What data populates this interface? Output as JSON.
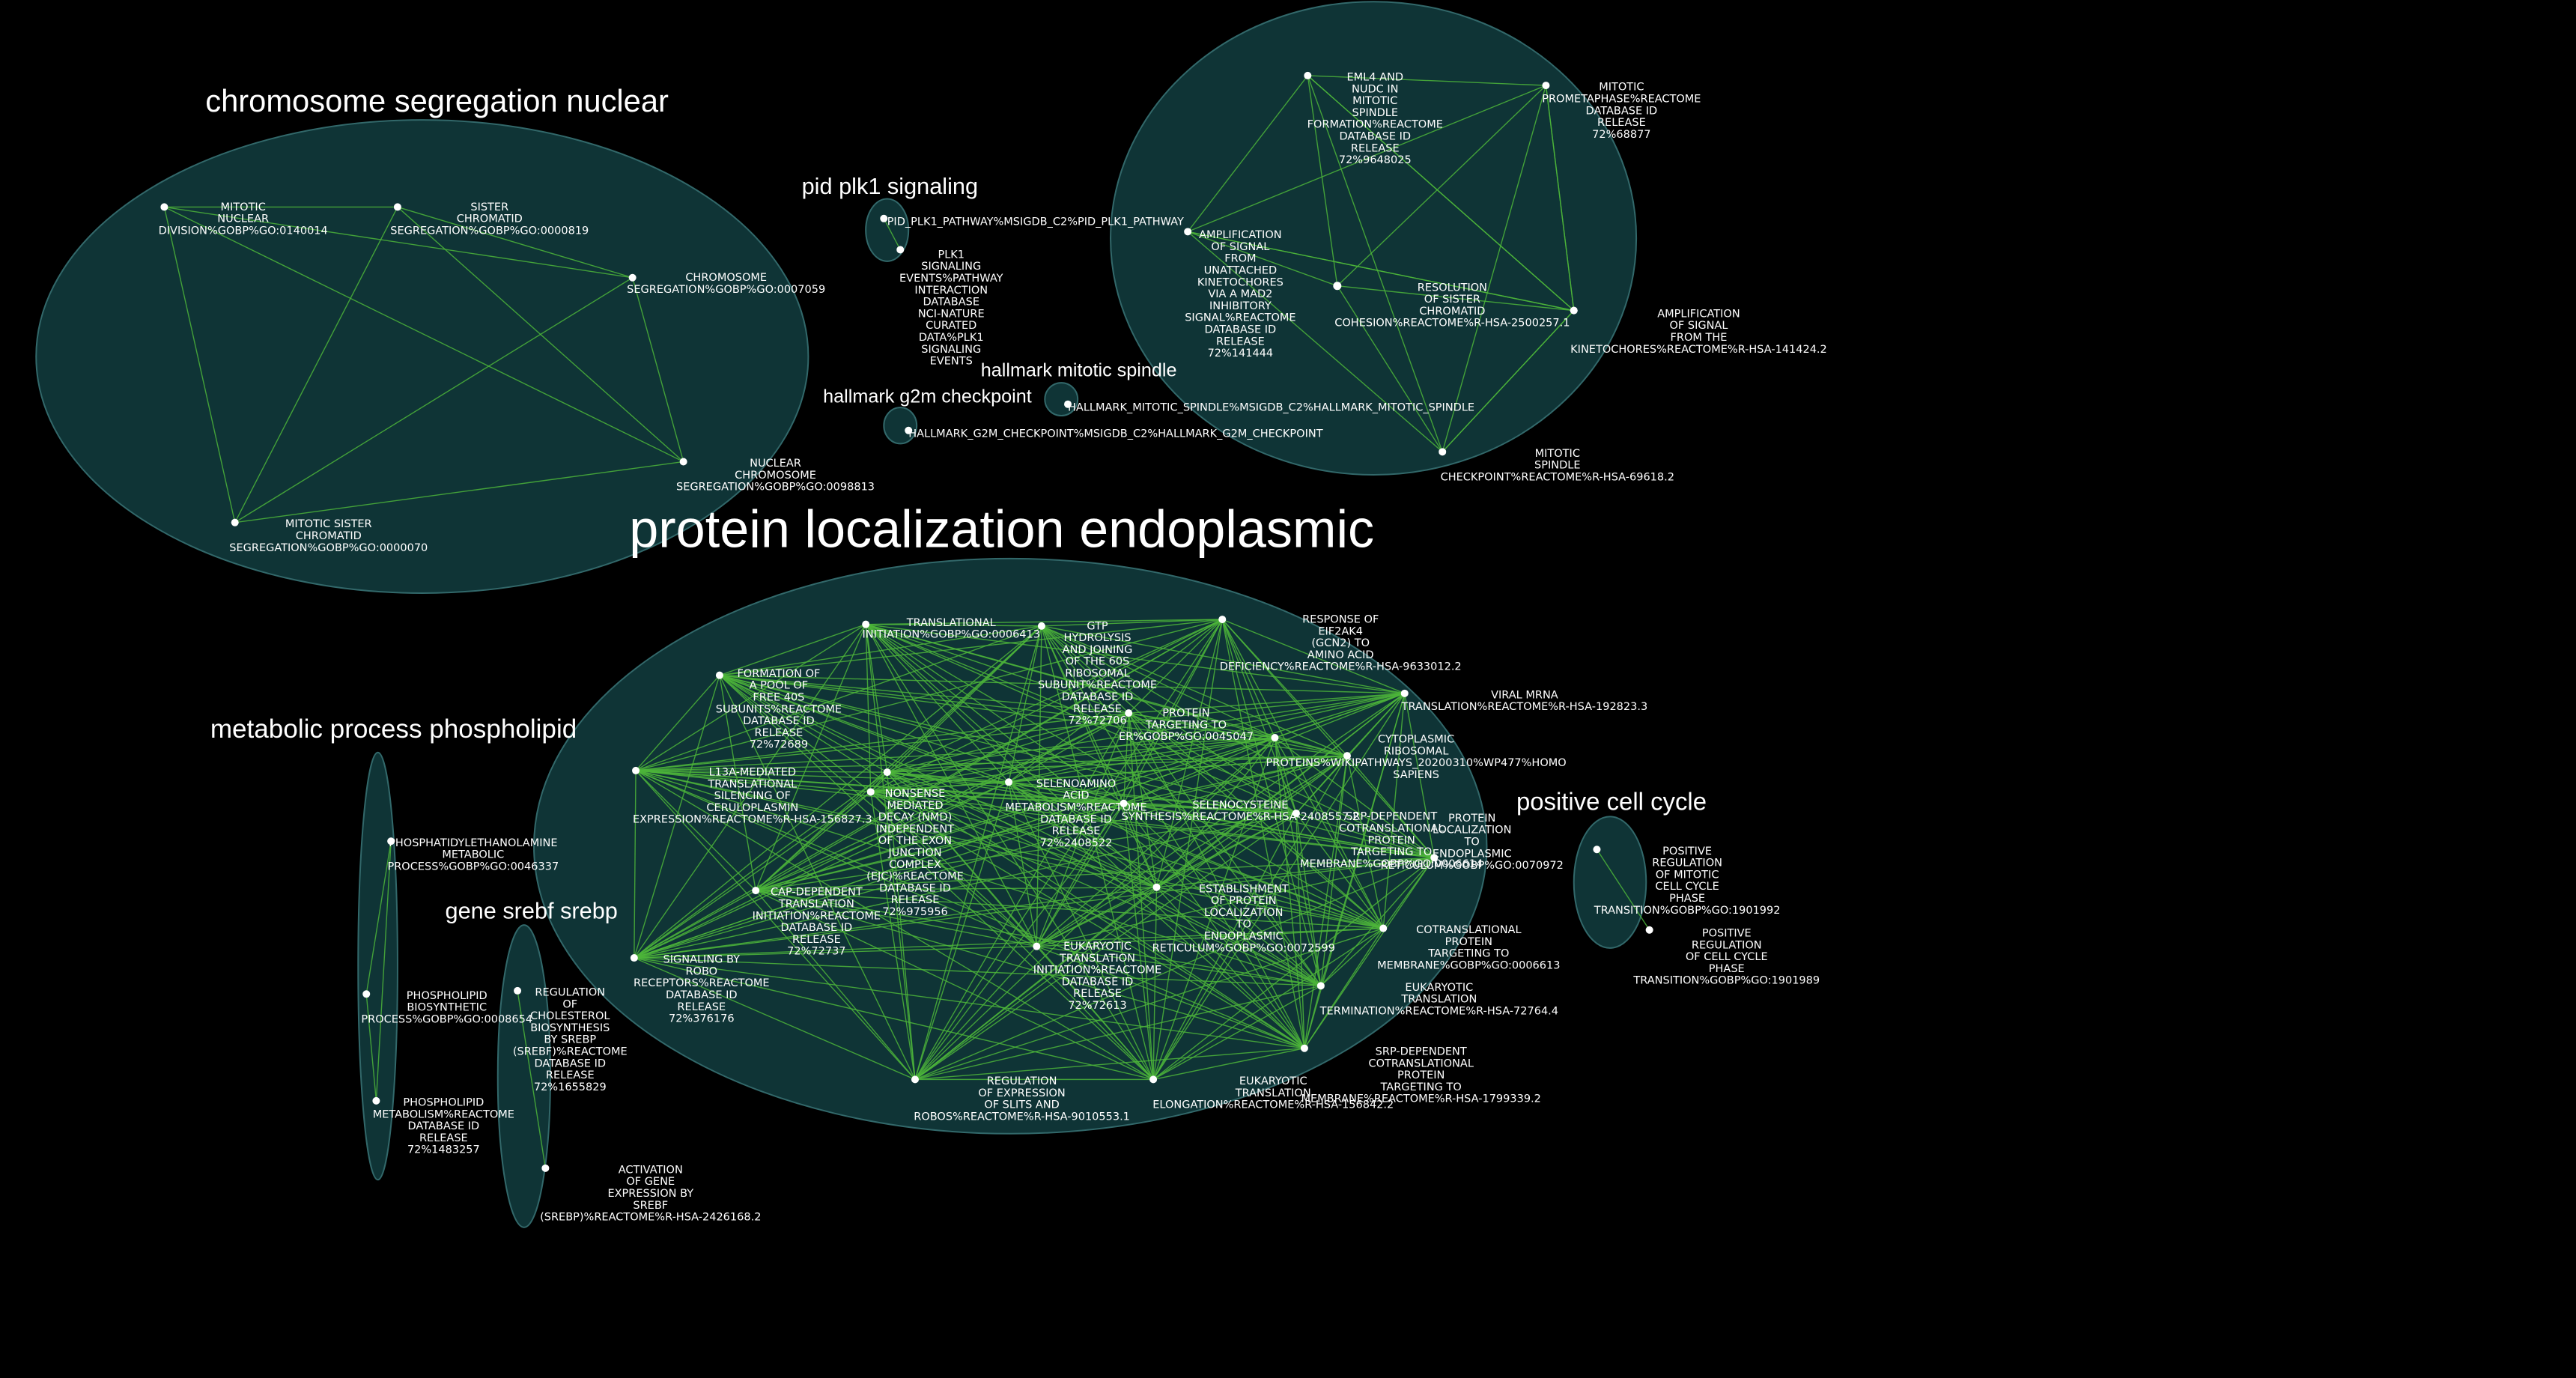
{
  "colors": {
    "background": "#000000",
    "cluster_fill": "#0f3436",
    "cluster_stroke": "#32686a",
    "edge": "#4cb53a",
    "node": "#ffffff",
    "highlight_node": "#ffff33",
    "text": "#ffffff"
  },
  "clusters": [
    {
      "id": "c-chrom",
      "title": "chromosome segregation nuclear"
    },
    {
      "id": "c-plk1",
      "title": "pid plk1 signaling"
    },
    {
      "id": "c-g2m",
      "title": "hallmark g2m checkpoint"
    },
    {
      "id": "c-spindle",
      "title": "hallmark mitotic spindle"
    },
    {
      "id": "c-mitotic",
      "title": ""
    },
    {
      "id": "c-protein",
      "title": "protein localization endoplasmic"
    },
    {
      "id": "c-phospho",
      "title": "metabolic process phospholipid"
    },
    {
      "id": "c-srebf",
      "title": "gene srebf srebp"
    },
    {
      "id": "c-poscc",
      "title": "positive cell cycle"
    }
  ],
  "nodes": [
    {
      "id": "cs1",
      "cluster": "c-chrom",
      "label": [
        "MITOTIC",
        "NUCLEAR",
        "DIVISION%GOBP%GO:0140014"
      ]
    },
    {
      "id": "cs2",
      "cluster": "c-chrom",
      "label": [
        "SISTER",
        "CHROMATID",
        "SEGREGATION%GOBP%GO:0000819"
      ]
    },
    {
      "id": "cs3",
      "cluster": "c-chrom",
      "label": [
        "CHROMOSOME",
        "SEGREGATION%GOBP%GO:0007059"
      ]
    },
    {
      "id": "cs4",
      "cluster": "c-chrom",
      "label": [
        "NUCLEAR",
        "CHROMOSOME",
        "SEGREGATION%GOBP%GO:0098813"
      ]
    },
    {
      "id": "cs5",
      "cluster": "c-chrom",
      "label": [
        "MITOTIC SISTER",
        "CHROMATID",
        "SEGREGATION%GOBP%GO:0000070"
      ]
    },
    {
      "id": "pk1",
      "cluster": "c-plk1",
      "label": [
        "PID_PLK1_PATHWAY%MSIGDB_C2%PID_PLK1_PATHWAY"
      ]
    },
    {
      "id": "pk2",
      "cluster": "c-plk1",
      "label": [
        "PLK1",
        "SIGNALING",
        "EVENTS%PATHWAY",
        "INTERACTION",
        "DATABASE",
        "NCI-NATURE",
        "CURATED",
        "DATA%PLK1",
        "SIGNALING",
        "EVENTS"
      ]
    },
    {
      "id": "g2m",
      "cluster": "c-g2m",
      "label": [
        "HALLMARK_G2M_CHECKPOINT%MSIGDB_C2%HALLMARK_G2M_CHECKPOINT"
      ]
    },
    {
      "id": "msp",
      "cluster": "c-spindle",
      "label": [
        "HALLMARK_MITOTIC_SPINDLE%MSIGDB_C2%HALLMARK_MITOTIC_SPINDLE"
      ]
    },
    {
      "id": "mt1",
      "cluster": "c-mitotic",
      "label": [
        "EML4 AND",
        "NUDC IN",
        "MITOTIC",
        "SPINDLE",
        "FORMATION%REACTOME",
        "DATABASE ID",
        "RELEASE",
        "72%9648025"
      ]
    },
    {
      "id": "mt2",
      "cluster": "c-mitotic",
      "label": [
        "MITOTIC",
        "PROMETAPHASE%REACTOME",
        "DATABASE ID",
        "RELEASE",
        "72%68877"
      ]
    },
    {
      "id": "mt3",
      "cluster": "c-mitotic",
      "label": [
        "AMPLIFICATION",
        "OF SIGNAL",
        "FROM",
        "UNATTACHED",
        "KINETOCHORES",
        "VIA A MAD2",
        "INHIBITORY",
        "SIGNAL%REACTOME",
        "DATABASE ID",
        "RELEASE",
        "72%141444"
      ]
    },
    {
      "id": "mt4",
      "cluster": "c-mitotic",
      "label": [
        "RESOLUTION",
        "OF SISTER",
        "CHROMATID",
        "COHESION%REACTOME%R-HSA-2500257.1"
      ]
    },
    {
      "id": "mt5",
      "cluster": "c-mitotic",
      "label": [
        "AMPLIFICATION",
        "OF SIGNAL",
        "FROM THE",
        "KINETOCHORES%REACTOME%R-HSA-141424.2"
      ]
    },
    {
      "id": "mt6",
      "cluster": "c-mitotic",
      "label": [
        "MITOTIC",
        "SPINDLE",
        "CHECKPOINT%REACTOME%R-HSA-69618.2"
      ]
    },
    {
      "id": "mt7",
      "cluster": "c-mitotic",
      "label": []
    },
    {
      "id": "pr1",
      "cluster": "c-protein",
      "label": [
        "TRANSLATIONAL",
        "INITIATION%GOBP%GO:0006413"
      ]
    },
    {
      "id": "pr2",
      "cluster": "c-protein",
      "label": [
        "GTP",
        "HYDROLYSIS",
        "AND JOINING",
        "OF THE 60S",
        "RIBOSOMAL",
        "SUBUNIT%REACTOME",
        "DATABASE ID",
        "RELEASE",
        "72%72706"
      ]
    },
    {
      "id": "pr3",
      "cluster": "c-protein",
      "label": [
        "RESPONSE OF",
        "EIF2AK4",
        "(GCN2) TO",
        "AMINO ACID",
        "DEFICIENCY%REACTOME%R-HSA-9633012.2"
      ]
    },
    {
      "id": "pr4",
      "cluster": "c-protein",
      "label": [
        "FORMATION OF",
        "A POOL OF",
        "FREE 40S",
        "SUBUNITS%REACTOME",
        "DATABASE ID",
        "RELEASE",
        "72%72689"
      ]
    },
    {
      "id": "pr5",
      "cluster": "c-protein",
      "label": [
        "VIRAL MRNA",
        "TRANSLATION%REACTOME%R-HSA-192823.3"
      ]
    },
    {
      "id": "pr6",
      "cluster": "c-protein",
      "label": [
        "PROTEIN",
        "TARGETING TO",
        "ER%GOBP%GO:0045047"
      ]
    },
    {
      "id": "pr7",
      "cluster": "c-protein",
      "label": [
        "CYTOPLASMIC",
        "RIBOSOMAL",
        "PROTEINS%WIKIPATHWAYS_20200310%WP477%HOMO",
        "SAPIENS"
      ]
    },
    {
      "id": "pr8",
      "cluster": "c-protein",
      "label": [
        "L13A-MEDIATED",
        "TRANSLATIONAL",
        "SILENCING OF",
        "CERULOPLASMIN",
        "EXPRESSION%REACTOME%R-HSA-156827.3"
      ]
    },
    {
      "id": "pr9",
      "cluster": "c-protein",
      "label": [
        "NONSENSE",
        "MEDIATED",
        "DECAY (NMD)",
        "INDEPENDENT",
        "OF THE EXON",
        "JUNCTION",
        "COMPLEX",
        "(EJC)%REACTOME",
        "DATABASE ID",
        "RELEASE",
        "72%975956"
      ]
    },
    {
      "id": "pr10",
      "cluster": "c-protein",
      "label": [
        "SELENOAMINO",
        "ACID",
        "METABOLISM%REACTOME",
        "DATABASE ID",
        "RELEASE",
        "72%2408522"
      ]
    },
    {
      "id": "pr11",
      "cluster": "c-protein",
      "label": [
        "SELENOCYSTEINE",
        "SYNTHESIS%REACTOME%R-HSA-2408557.2"
      ]
    },
    {
      "id": "pr12",
      "cluster": "c-protein",
      "label": [
        "SRP-DEPENDENT",
        "COTRANSLATIONAL",
        "PROTEIN",
        "TARGETING TO",
        "MEMBRANE%GOBP%GO:0006614"
      ]
    },
    {
      "id": "pr13",
      "cluster": "c-protein",
      "label": [
        "PROTEIN",
        "LOCALIZATION",
        "TO",
        "ENDOPLASMIC",
        "RETICULUM%GOBP%GO:0070972"
      ]
    },
    {
      "id": "pr14",
      "cluster": "c-protein",
      "label": [
        "CAP-DEPENDENT",
        "TRANSLATION",
        "INITIATION%REACTOME",
        "DATABASE ID",
        "RELEASE",
        "72%72737"
      ]
    },
    {
      "id": "pr15",
      "cluster": "c-protein",
      "label": [
        "ESTABLISHMENT",
        "OF PROTEIN",
        "LOCALIZATION",
        "TO",
        "ENDOPLASMIC",
        "RETICULUM%GOBP%GO:0072599"
      ]
    },
    {
      "id": "pr16",
      "cluster": "c-protein",
      "label": [
        "COTRANSLATIONAL",
        "PROTEIN",
        "TARGETING TO",
        "MEMBRANE%GOBP%GO:0006613"
      ]
    },
    {
      "id": "pr17",
      "cluster": "c-protein",
      "label": [
        "SIGNALING BY",
        "ROBO",
        "RECEPTORS%REACTOME",
        "DATABASE ID",
        "RELEASE",
        "72%376176"
      ]
    },
    {
      "id": "pr18",
      "cluster": "c-protein",
      "label": [
        "EUKARYOTIC",
        "TRANSLATION",
        "INITIATION%REACTOME",
        "DATABASE ID",
        "RELEASE",
        "72%72613"
      ]
    },
    {
      "id": "pr19",
      "cluster": "c-protein",
      "label": [
        "EUKARYOTIC",
        "TRANSLATION",
        "TERMINATION%REACTOME%R-HSA-72764.4"
      ]
    },
    {
      "id": "pr20",
      "cluster": "c-protein",
      "label": [
        "REGULATION",
        "OF EXPRESSION",
        "OF SLITS AND",
        "ROBOS%REACTOME%R-HSA-9010553.1"
      ]
    },
    {
      "id": "pr21",
      "cluster": "c-protein",
      "label": [
        "EUKARYOTIC",
        "TRANSLATION",
        "ELONGATION%REACTOME%R-HSA-156842.2"
      ]
    },
    {
      "id": "pr22",
      "cluster": "c-protein",
      "label": [
        "SRP-DEPENDENT",
        "COTRANSLATIONAL",
        "PROTEIN",
        "TARGETING TO",
        "MEMBRANE%REACTOME%R-HSA-1799339.2"
      ]
    },
    {
      "id": "pr23",
      "cluster": "c-protein",
      "label": []
    },
    {
      "id": "pr24",
      "cluster": "c-protein",
      "label": []
    },
    {
      "id": "ph1",
      "cluster": "c-phospho",
      "label": [
        "PHOSPHATIDYLETHANOLAMINE",
        "METABOLIC",
        "PROCESS%GOBP%GO:0046337"
      ]
    },
    {
      "id": "ph2",
      "cluster": "c-phospho",
      "label": [
        "PHOSPHOLIPID",
        "BIOSYNTHETIC",
        "PROCESS%GOBP%GO:0008654"
      ]
    },
    {
      "id": "ph3",
      "cluster": "c-phospho",
      "label": [
        "PHOSPHOLIPID",
        "METABOLISM%REACTOME",
        "DATABASE ID",
        "RELEASE",
        "72%1483257"
      ]
    },
    {
      "id": "sr1",
      "cluster": "c-srebf",
      "label": [
        "REGULATION",
        "OF",
        "CHOLESTEROL",
        "BIOSYNTHESIS",
        "BY SREBP",
        "(SREBF)%REACTOME",
        "DATABASE ID",
        "RELEASE",
        "72%1655829"
      ]
    },
    {
      "id": "sr2",
      "cluster": "c-srebf",
      "label": [
        "ACTIVATION",
        "OF GENE",
        "EXPRESSION BY",
        "SREBF",
        "(SREBP)%REACTOME%R-HSA-2426168.2"
      ]
    },
    {
      "id": "pc1",
      "cluster": "c-poscc",
      "label": [
        "POSITIVE",
        "REGULATION",
        "OF MITOTIC",
        "CELL CYCLE",
        "PHASE",
        "TRANSITION%GOBP%GO:1901992"
      ]
    },
    {
      "id": "pc2",
      "cluster": "c-poscc",
      "label": [
        "POSITIVE",
        "REGULATION",
        "OF CELL CYCLE",
        "PHASE",
        "TRANSITION%GOBP%GO:1901989"
      ]
    }
  ],
  "edges": [
    [
      "cs1",
      "cs2"
    ],
    [
      "cs1",
      "cs3"
    ],
    [
      "cs1",
      "cs4"
    ],
    [
      "cs1",
      "cs5"
    ],
    [
      "cs2",
      "cs3"
    ],
    [
      "cs2",
      "cs4"
    ],
    [
      "cs2",
      "cs5"
    ],
    [
      "cs3",
      "cs4"
    ],
    [
      "cs3",
      "cs5"
    ],
    [
      "cs4",
      "cs5"
    ],
    [
      "pk1",
      "pk2"
    ],
    [
      "mt1",
      "mt2"
    ],
    [
      "mt1",
      "mt3"
    ],
    [
      "mt1",
      "mt4"
    ],
    [
      "mt1",
      "mt5"
    ],
    [
      "mt1",
      "mt6"
    ],
    [
      "mt1",
      "mt7"
    ],
    [
      "mt2",
      "mt3"
    ],
    [
      "mt2",
      "mt4"
    ],
    [
      "mt2",
      "mt5"
    ],
    [
      "mt2",
      "mt6"
    ],
    [
      "mt2",
      "mt7"
    ],
    [
      "mt3",
      "mt4"
    ],
    [
      "mt3",
      "mt5"
    ],
    [
      "mt3",
      "mt6"
    ],
    [
      "mt3",
      "mt7"
    ],
    [
      "mt4",
      "mt5"
    ],
    [
      "mt4",
      "mt6"
    ],
    [
      "mt5",
      "mt6"
    ],
    [
      "mt5",
      "mt7"
    ],
    [
      "mt6",
      "mt7"
    ],
    [
      "ph1",
      "ph2"
    ],
    [
      "ph2",
      "ph3"
    ],
    [
      "ph1",
      "ph3"
    ],
    [
      "sr1",
      "sr2"
    ],
    [
      "pc1",
      "pc2"
    ]
  ],
  "dense_cluster": "c-protein"
}
